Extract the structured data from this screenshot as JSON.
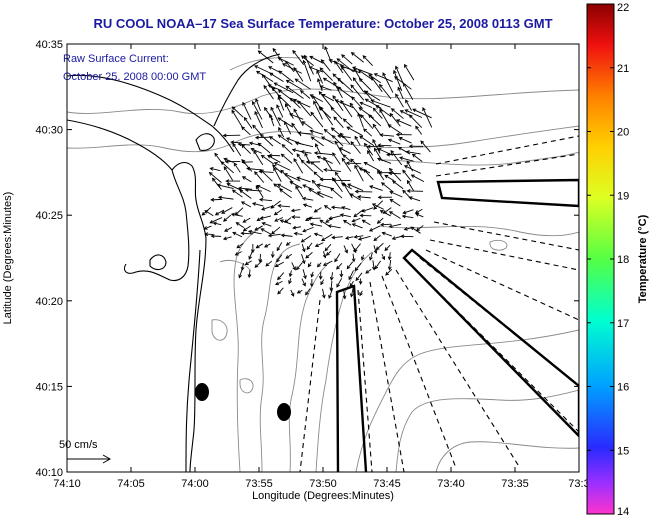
{
  "title": "RU COOL  NOAA–17  Sea Surface Temperature:  October 25, 2008 0113 GMT",
  "annotation": {
    "line1": "Raw Surface Current:",
    "line2": "October 25, 2008 00:00 GMT"
  },
  "scale_label": "50 cm/s",
  "axes": {
    "xlabel": "Longitude (Degrees:Minutes)",
    "ylabel": "Latitude (Degrees:Minutes)",
    "x_ticks": [
      "74:10",
      "74:05",
      "74:00",
      "73:55",
      "73:50",
      "73:45",
      "73:40",
      "73:35",
      "73:3"
    ],
    "y_ticks": [
      "40:35",
      "40:30",
      "40:25",
      "40:20",
      "40:15",
      "40:10"
    ]
  },
  "colorbar": {
    "label": "Temperature (°C)",
    "ticks": [
      "22",
      "21",
      "20",
      "19",
      "18",
      "17",
      "16",
      "15",
      "14"
    ],
    "min": 14,
    "max": 22
  },
  "colors": {
    "title": "#1a1aa0",
    "contour": "#8a8a8a",
    "coast": "#000000"
  }
}
